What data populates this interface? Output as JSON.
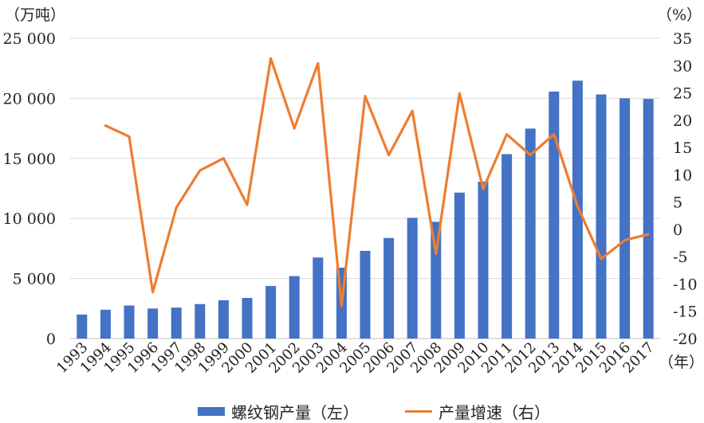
{
  "chart_data": {
    "type": "bar+line",
    "categories": [
      "1993",
      "1994",
      "1995",
      "1996",
      "1997",
      "1998",
      "1999",
      "2000",
      "2001",
      "2002",
      "2003",
      "2004",
      "2005",
      "2006",
      "2007",
      "2008",
      "2009",
      "2010",
      "2011",
      "2012",
      "2013",
      "2014",
      "2015",
      "2016",
      "2017"
    ],
    "left_unit": "（万吨）",
    "right_unit": "（%）",
    "x_unit": "（年）",
    "left_axis": {
      "min": 0,
      "max": 25000,
      "step": 5000,
      "ticks": [
        "0",
        "5 000",
        "10 000",
        "15 000",
        "20 000",
        "25 000"
      ]
    },
    "right_axis": {
      "min": -20,
      "max": 35,
      "step": 5,
      "ticks": [
        "-20",
        "-15",
        "-10",
        "-5",
        "0",
        "5",
        "10",
        "15",
        "20",
        "25",
        "30",
        "35"
      ]
    },
    "grid": true,
    "legend_position": "bottom",
    "series": [
      {
        "name": "螺纹钢产量（左）",
        "type": "bar",
        "axis": "left",
        "color": "#4472C4",
        "values": [
          2000,
          2400,
          2750,
          2500,
          2580,
          2870,
          3190,
          3380,
          4380,
          5200,
          6750,
          5900,
          7300,
          8370,
          10050,
          9720,
          12150,
          13060,
          15350,
          17480,
          20560,
          21470,
          20320,
          20000,
          19950
        ]
      },
      {
        "name": "产量增速（右）",
        "type": "line",
        "axis": "right",
        "color": "#ED7D31",
        "values": [
          null,
          19,
          17,
          -11.5,
          4,
          10.8,
          13,
          4.5,
          31.3,
          18.5,
          30.4,
          -14,
          24.4,
          13.6,
          21.7,
          -4.5,
          24.9,
          7.4,
          17.4,
          13.6,
          17.4,
          4.2,
          -5.4,
          -2,
          -0.9
        ]
      }
    ]
  }
}
